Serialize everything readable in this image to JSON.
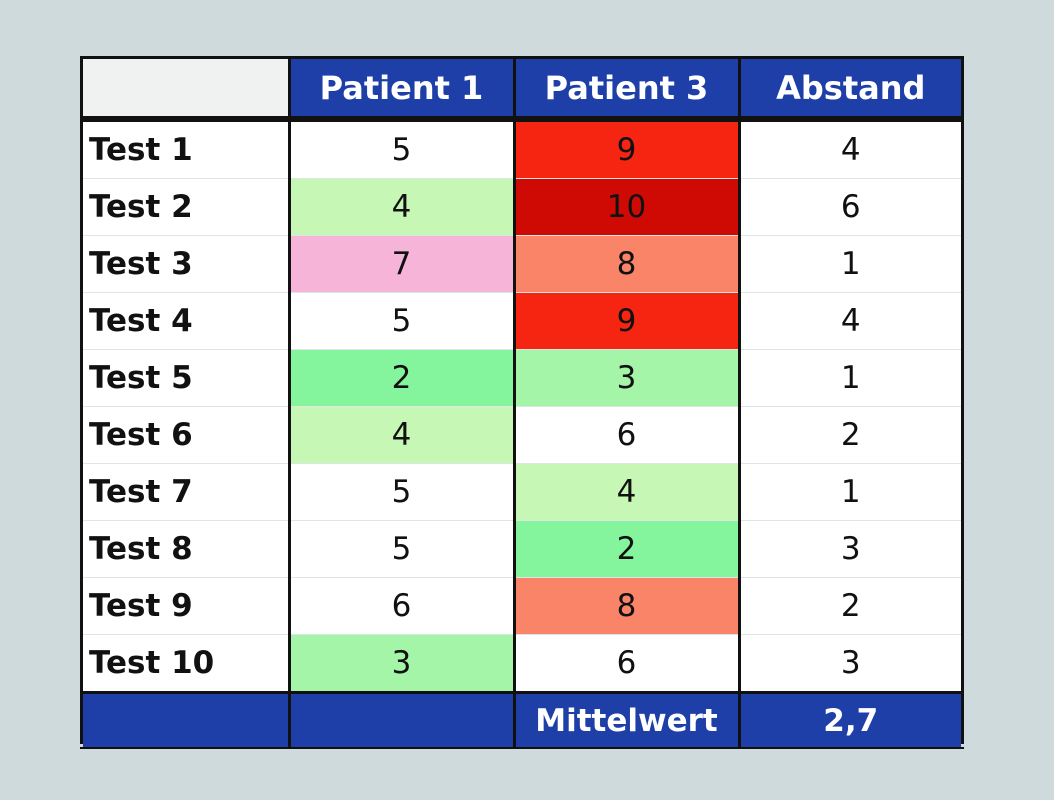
{
  "chart_data": {
    "type": "table",
    "title": "",
    "columns": [
      "",
      "Patient 1",
      "Patient 3",
      "Abstand"
    ],
    "rows": [
      {
        "label": "Test 1",
        "values": [
          "5",
          "9",
          "4"
        ],
        "colors": [
          "#ffffff",
          "#f52512",
          "#ffffff"
        ]
      },
      {
        "label": "Test 2",
        "values": [
          "4",
          "10",
          "6"
        ],
        "colors": [
          "#c6f7b4",
          "#cf0a04",
          "#ffffff"
        ]
      },
      {
        "label": "Test 3",
        "values": [
          "7",
          "8",
          "1"
        ],
        "colors": [
          "#f7b4d9",
          "#f98468",
          "#ffffff"
        ]
      },
      {
        "label": "Test 4",
        "values": [
          "5",
          "9",
          "4"
        ],
        "colors": [
          "#ffffff",
          "#f52512",
          "#ffffff"
        ]
      },
      {
        "label": "Test 5",
        "values": [
          "2",
          "3",
          "1"
        ],
        "colors": [
          "#85f59d",
          "#a4f5a8",
          "#ffffff"
        ]
      },
      {
        "label": "Test 6",
        "values": [
          "4",
          "6",
          "2"
        ],
        "colors": [
          "#c6f7b4",
          "#ffffff",
          "#ffffff"
        ]
      },
      {
        "label": "Test 7",
        "values": [
          "5",
          "4",
          "1"
        ],
        "colors": [
          "#ffffff",
          "#c6f7b4",
          "#ffffff"
        ]
      },
      {
        "label": "Test 8",
        "values": [
          "5",
          "2",
          "3"
        ],
        "colors": [
          "#ffffff",
          "#85f59d",
          "#ffffff"
        ]
      },
      {
        "label": "Test 9",
        "values": [
          "6",
          "8",
          "2"
        ],
        "colors": [
          "#ffffff",
          "#f98468",
          "#ffffff"
        ]
      },
      {
        "label": "Test 10",
        "values": [
          "3",
          "6",
          "3"
        ],
        "colors": [
          "#a4f5a8",
          "#ffffff",
          "#ffffff"
        ]
      }
    ],
    "footer": {
      "label": "Mittelwert",
      "value": "2,7"
    },
    "header_color": "#1f3fa8",
    "grid": true
  }
}
